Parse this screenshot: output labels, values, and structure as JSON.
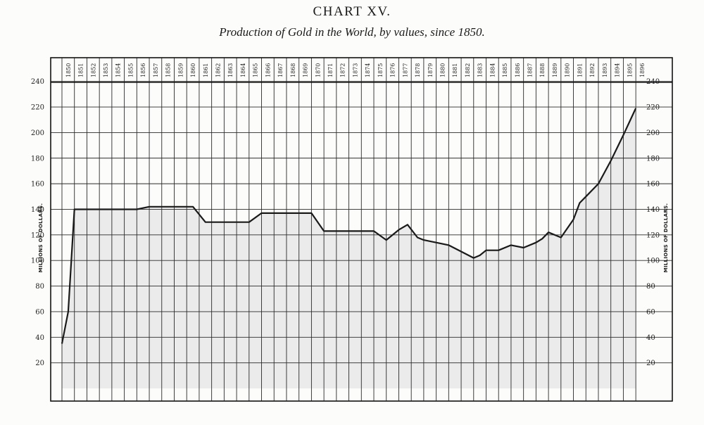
{
  "chart_data": {
    "type": "line",
    "title": "CHART XV.",
    "subtitle": "Production of Gold in the World, by values, since 1850.",
    "ylabel": "MILLIONS OF DOLLARS.",
    "xlabel": "",
    "ylim": [
      0,
      240
    ],
    "yticks": [
      20,
      40,
      60,
      80,
      100,
      120,
      140,
      160,
      180,
      200,
      220,
      240
    ],
    "categories": [
      "1850",
      "1851",
      "1852",
      "1853",
      "1854",
      "1855",
      "1856",
      "1857",
      "1858",
      "1859",
      "1860",
      "1861",
      "1862",
      "1863",
      "1864",
      "1865",
      "1866",
      "1867",
      "1868",
      "1869",
      "1870",
      "1871",
      "1872",
      "1873",
      "1874",
      "1875",
      "1876",
      "1877",
      "1878",
      "1879",
      "1880",
      "1881",
      "1882",
      "1883",
      "1884",
      "1885",
      "1886",
      "1887",
      "1888",
      "1889",
      "1890",
      "1891",
      "1892",
      "1893",
      "1894",
      "1895",
      "1896"
    ],
    "series": [
      {
        "values": [
          [
            1850,
            35
          ],
          [
            1850.5,
            60
          ],
          [
            1851,
            140
          ],
          [
            1856,
            140
          ],
          [
            1857,
            142
          ],
          [
            1860.5,
            142
          ],
          [
            1861.5,
            130
          ],
          [
            1865,
            130
          ],
          [
            1866,
            137
          ],
          [
            1870,
            137
          ],
          [
            1871,
            123
          ],
          [
            1875,
            123
          ],
          [
            1876,
            116
          ],
          [
            1877,
            124
          ],
          [
            1877.7,
            128
          ],
          [
            1878.5,
            118
          ],
          [
            1879,
            116
          ],
          [
            1880,
            114
          ],
          [
            1881,
            112
          ],
          [
            1882,
            107
          ],
          [
            1883,
            102
          ],
          [
            1883.5,
            104
          ],
          [
            1884,
            108
          ],
          [
            1885,
            108
          ],
          [
            1886,
            112
          ],
          [
            1887,
            110
          ],
          [
            1888,
            114
          ],
          [
            1888.5,
            117
          ],
          [
            1889,
            122
          ],
          [
            1890,
            118
          ],
          [
            1891,
            132
          ],
          [
            1891.5,
            145
          ],
          [
            1892,
            150
          ],
          [
            1893,
            160
          ],
          [
            1894,
            178
          ],
          [
            1895,
            198
          ],
          [
            1896,
            219
          ]
        ]
      }
    ],
    "grid": true,
    "colors": {
      "line": "#1a1a1a",
      "grid": "#2a2a2a",
      "shade": "#ebebeb"
    }
  }
}
